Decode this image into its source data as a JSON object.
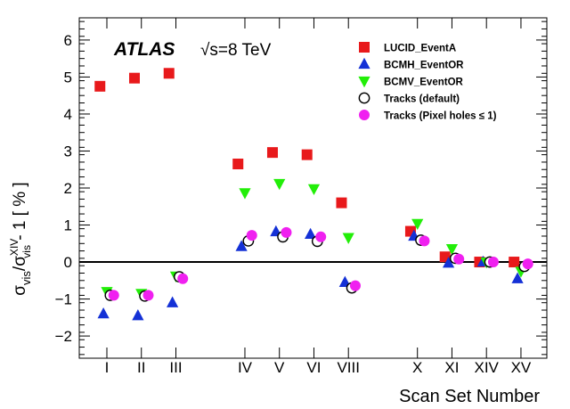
{
  "chart_data": {
    "type": "scatter",
    "title": "",
    "experiment": "ATLAS",
    "energy_label": "√s=8 TeV",
    "xlabel": "Scan Set Number",
    "ylabel": "σvis/σvisXIV - 1 [ % ]",
    "ylim": [
      -2.6,
      6.6
    ],
    "y_ticks": [
      "−2",
      "−1",
      "0",
      "1",
      "2",
      "3",
      "4",
      "5",
      "6"
    ],
    "y_tick_values": [
      -2,
      -1,
      0,
      1,
      2,
      3,
      4,
      5,
      6
    ],
    "categories": [
      "I",
      "II",
      "III",
      "IV",
      "V",
      "VI",
      "VIII",
      "X",
      "XI",
      "XIV",
      "XV"
    ],
    "category_positions": [
      1,
      2,
      3,
      5,
      6,
      7,
      8,
      10,
      11,
      12,
      13
    ],
    "xlim": [
      0.2,
      13.75
    ],
    "series": [
      {
        "name": "LUCID_EventA",
        "marker": "square",
        "color": "#e8191b",
        "offset": -0.2,
        "values": [
          4.75,
          4.97,
          5.1,
          2.65,
          2.96,
          2.9,
          1.6,
          0.83,
          0.14,
          0.0,
          0.0
        ]
      },
      {
        "name": "BCMH_EventOR",
        "marker": "triangle-up",
        "color": "#1431d6",
        "offset": -0.1,
        "values": [
          -1.4,
          -1.45,
          -1.1,
          0.42,
          0.82,
          0.75,
          -0.55,
          0.7,
          -0.03,
          0.0,
          -0.45
        ]
      },
      {
        "name": "BCMV_EventOR",
        "marker": "triangle-down",
        "color": "#22ee08",
        "offset": 0.0,
        "values": [
          -0.8,
          -0.85,
          -0.38,
          1.87,
          2.12,
          1.98,
          0.66,
          1.04,
          0.36,
          0.0,
          -0.25
        ]
      },
      {
        "name": "Tracks (default)",
        "marker": "open-circle",
        "color": "#000000",
        "offset": 0.1,
        "values": [
          -0.9,
          -0.92,
          -0.4,
          0.57,
          0.68,
          0.56,
          -0.7,
          0.59,
          0.1,
          0.0,
          -0.12
        ]
      },
      {
        "name": "Tracks (Pixel holes ≤ 1)",
        "marker": "filled-circle",
        "color": "#f020f0",
        "offset": 0.2,
        "values": [
          -0.9,
          -0.9,
          -0.45,
          0.72,
          0.8,
          0.68,
          -0.64,
          0.57,
          0.08,
          0.0,
          -0.05
        ]
      }
    ],
    "legend_position": "top-right",
    "grid": false
  }
}
